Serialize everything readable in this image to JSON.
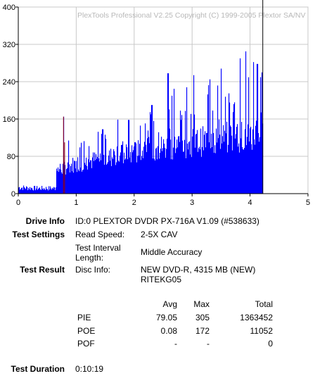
{
  "chart_data": {
    "type": "bar",
    "watermark": "PlexTools Professional V2.25 Copyright (C) 1999-2005 Plextor SA/NV",
    "xlim": [
      0,
      5
    ],
    "ylim": [
      0,
      400
    ],
    "x_ticks": [
      "0",
      "1",
      "2",
      "3",
      "4",
      "5"
    ],
    "y_ticks": [
      "0",
      "80",
      "160",
      "240",
      "320",
      "400"
    ],
    "grid": true,
    "bar_color": "#0000ff",
    "spike_color": "#990000",
    "end_marker_color": "#000000",
    "series": [
      {
        "name": "PIE",
        "x_end": 4.22,
        "profile": [
          {
            "x": 0.0,
            "y": 14
          },
          {
            "x": 0.3,
            "y": 12
          },
          {
            "x": 0.64,
            "y": 12
          },
          {
            "x": 0.66,
            "y": 55
          },
          {
            "x": 1.0,
            "y": 70
          },
          {
            "x": 1.5,
            "y": 82
          },
          {
            "x": 2.0,
            "y": 95
          },
          {
            "x": 2.5,
            "y": 108
          },
          {
            "x": 3.0,
            "y": 118
          },
          {
            "x": 3.5,
            "y": 127
          },
          {
            "x": 4.0,
            "y": 140
          },
          {
            "x": 4.22,
            "y": 152
          }
        ],
        "peaks": [
          {
            "x": 0.78,
            "y": 165
          },
          {
            "x": 1.45,
            "y": 138
          },
          {
            "x": 1.9,
            "y": 158
          },
          {
            "x": 2.3,
            "y": 190
          },
          {
            "x": 2.58,
            "y": 258
          },
          {
            "x": 2.65,
            "y": 210
          },
          {
            "x": 2.9,
            "y": 228
          },
          {
            "x": 3.02,
            "y": 254
          },
          {
            "x": 3.3,
            "y": 245
          },
          {
            "x": 3.5,
            "y": 268
          },
          {
            "x": 3.82,
            "y": 290
          },
          {
            "x": 3.92,
            "y": 305
          },
          {
            "x": 4.05,
            "y": 282
          },
          {
            "x": 4.12,
            "y": 278
          },
          {
            "x": 4.2,
            "y": 260
          }
        ]
      }
    ]
  },
  "info": {
    "drive_info_label": "Drive Info",
    "drive_info_value": "ID:0 PLEXTOR DVDR PX-716A V1.09 (#538633)",
    "test_settings_label": "Test Settings",
    "read_speed_label": "Read Speed:",
    "read_speed_value": "2-5X CAV",
    "interval_label_1": "Test Interval",
    "interval_label_2": "Length:",
    "interval_value": "Middle Accuracy",
    "test_result_label": "Test Result",
    "disc_info_label": "Disc Info:",
    "disc_info_value_1": "NEW DVD-R, 4315 MB (NEW)",
    "disc_info_value_2": "RITEKG05",
    "test_duration_label": "Test Duration",
    "test_duration_value": "0:10:19"
  },
  "results": {
    "headers": [
      "Avg",
      "Max",
      "Total"
    ],
    "rows": [
      {
        "name": "PIE",
        "avg": "79.05",
        "max": "305",
        "total": "1363452"
      },
      {
        "name": "POE",
        "avg": "0.08",
        "max": "172",
        "total": "11052"
      },
      {
        "name": "POF",
        "avg": "-",
        "max": "-",
        "total": "0"
      }
    ]
  }
}
